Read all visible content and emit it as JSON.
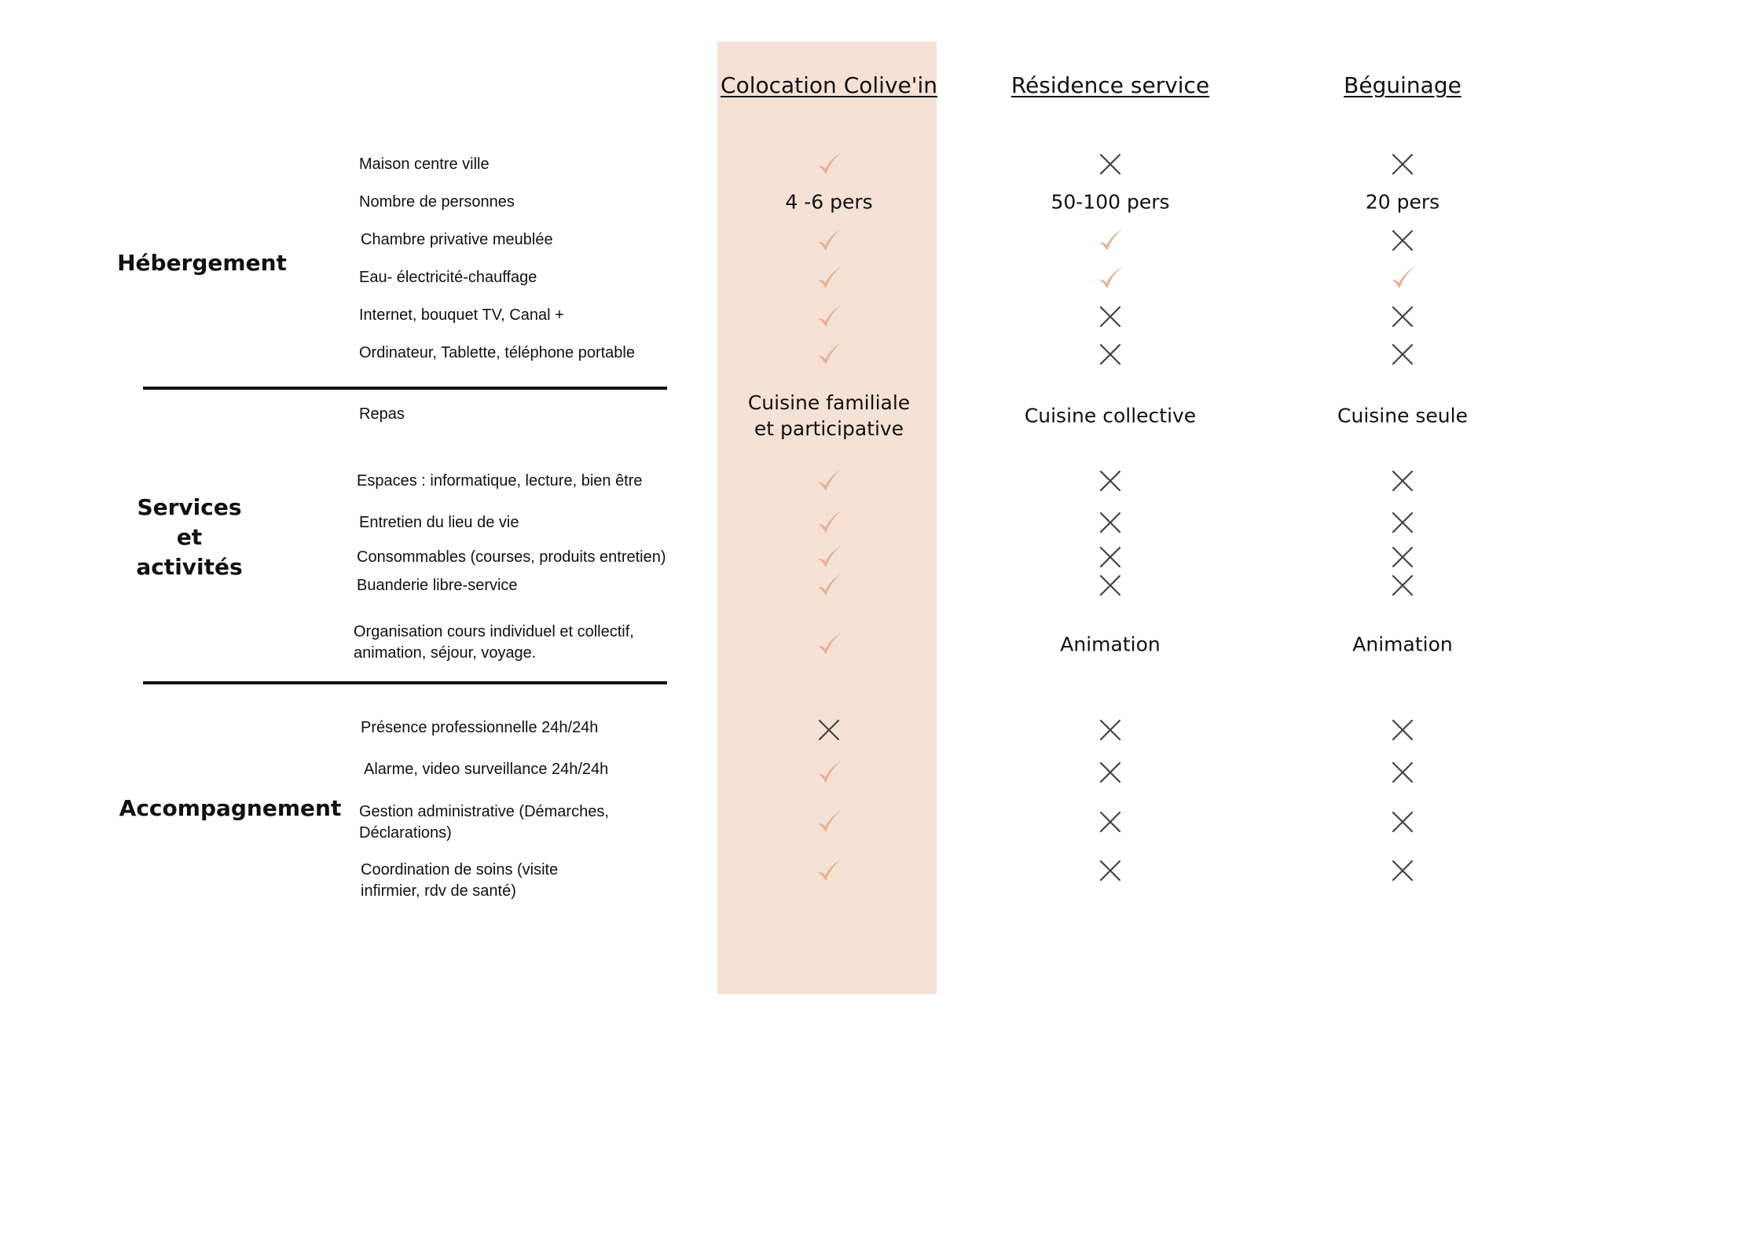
{
  "columns": [
    {
      "label": "Colocation Colive'in"
    },
    {
      "label": "Résidence  service"
    },
    {
      "label": "Béguinage"
    }
  ],
  "sections": [
    {
      "label": "Hébergement"
    },
    {
      "label": "Services\net\nactivités"
    },
    {
      "label": "Accompagnement"
    }
  ],
  "rows": [
    {
      "label": "Maison centre ville",
      "cells": [
        {
          "icon": "check-icon"
        },
        {
          "icon": "cross-icon"
        },
        {
          "icon": "cross-icon"
        }
      ]
    },
    {
      "label": "Nombre de personnes",
      "cells": [
        {
          "text": "4 -6 pers"
        },
        {
          "text": "50-100 pers"
        },
        {
          "text": "20 pers"
        }
      ]
    },
    {
      "label": "Chambre privative meublée",
      "cells": [
        {
          "icon": "check-icon"
        },
        {
          "icon": "check-icon"
        },
        {
          "icon": "cross-icon"
        }
      ]
    },
    {
      "label": "Eau- électricité-chauffage",
      "cells": [
        {
          "icon": "check-icon"
        },
        {
          "icon": "check-icon"
        },
        {
          "icon": "check-icon"
        }
      ]
    },
    {
      "label": "Internet, bouquet TV, Canal +",
      "cells": [
        {
          "icon": "check-icon"
        },
        {
          "icon": "cross-icon"
        },
        {
          "icon": "cross-icon"
        }
      ]
    },
    {
      "label": "Ordinateur, Tablette, téléphone portable",
      "cells": [
        {
          "icon": "check-icon"
        },
        {
          "icon": "cross-icon"
        },
        {
          "icon": "cross-icon"
        }
      ]
    },
    {
      "label": "Repas",
      "cells": [
        {
          "text": "Cuisine familiale\net participative"
        },
        {
          "text": "Cuisine collective"
        },
        {
          "text": "Cuisine seule"
        }
      ]
    },
    {
      "label": "Espaces : informatique, lecture, bien être",
      "cells": [
        {
          "icon": "check-icon"
        },
        {
          "icon": "cross-icon"
        },
        {
          "icon": "cross-icon"
        }
      ]
    },
    {
      "label": "Entretien du lieu de vie",
      "cells": [
        {
          "icon": "check-icon"
        },
        {
          "icon": "cross-icon"
        },
        {
          "icon": "cross-icon"
        }
      ]
    },
    {
      "label": "Consommables (courses, produits entretien)",
      "cells": [
        {
          "icon": "check-icon"
        },
        {
          "icon": "cross-icon"
        },
        {
          "icon": "cross-icon"
        }
      ]
    },
    {
      "label": "Buanderie libre-service",
      "cells": [
        {
          "icon": "check-icon"
        },
        {
          "icon": "cross-icon"
        },
        {
          "icon": "cross-icon"
        }
      ]
    },
    {
      "label": "Organisation cours individuel et collectif,\nanimation, séjour, voyage.",
      "cells": [
        {
          "icon": "check-icon"
        },
        {
          "text": "Animation"
        },
        {
          "text": "Animation"
        }
      ]
    },
    {
      "label": "Présence professionnelle 24h/24h",
      "cells": [
        {
          "icon": "cross-icon"
        },
        {
          "icon": "cross-icon"
        },
        {
          "icon": "cross-icon"
        }
      ]
    },
    {
      "label": "Alarme, video surveillance 24h/24h",
      "cells": [
        {
          "icon": "check-icon"
        },
        {
          "icon": "cross-icon"
        },
        {
          "icon": "cross-icon"
        }
      ]
    },
    {
      "label": "Gestion administrative (Démarches,\nDéclarations)",
      "cells": [
        {
          "icon": "check-icon"
        },
        {
          "icon": "cross-icon"
        },
        {
          "icon": "cross-icon"
        }
      ]
    },
    {
      "label": "Coordination de soins (visite\ninfirmier, rdv de santé)",
      "cells": [
        {
          "icon": "check-icon"
        },
        {
          "icon": "cross-icon"
        },
        {
          "icon": "cross-icon"
        }
      ]
    }
  ],
  "colors": {
    "highlight": "#f5e1d5",
    "check": "#e8b290",
    "cross": "#444444",
    "text": "#111111"
  }
}
